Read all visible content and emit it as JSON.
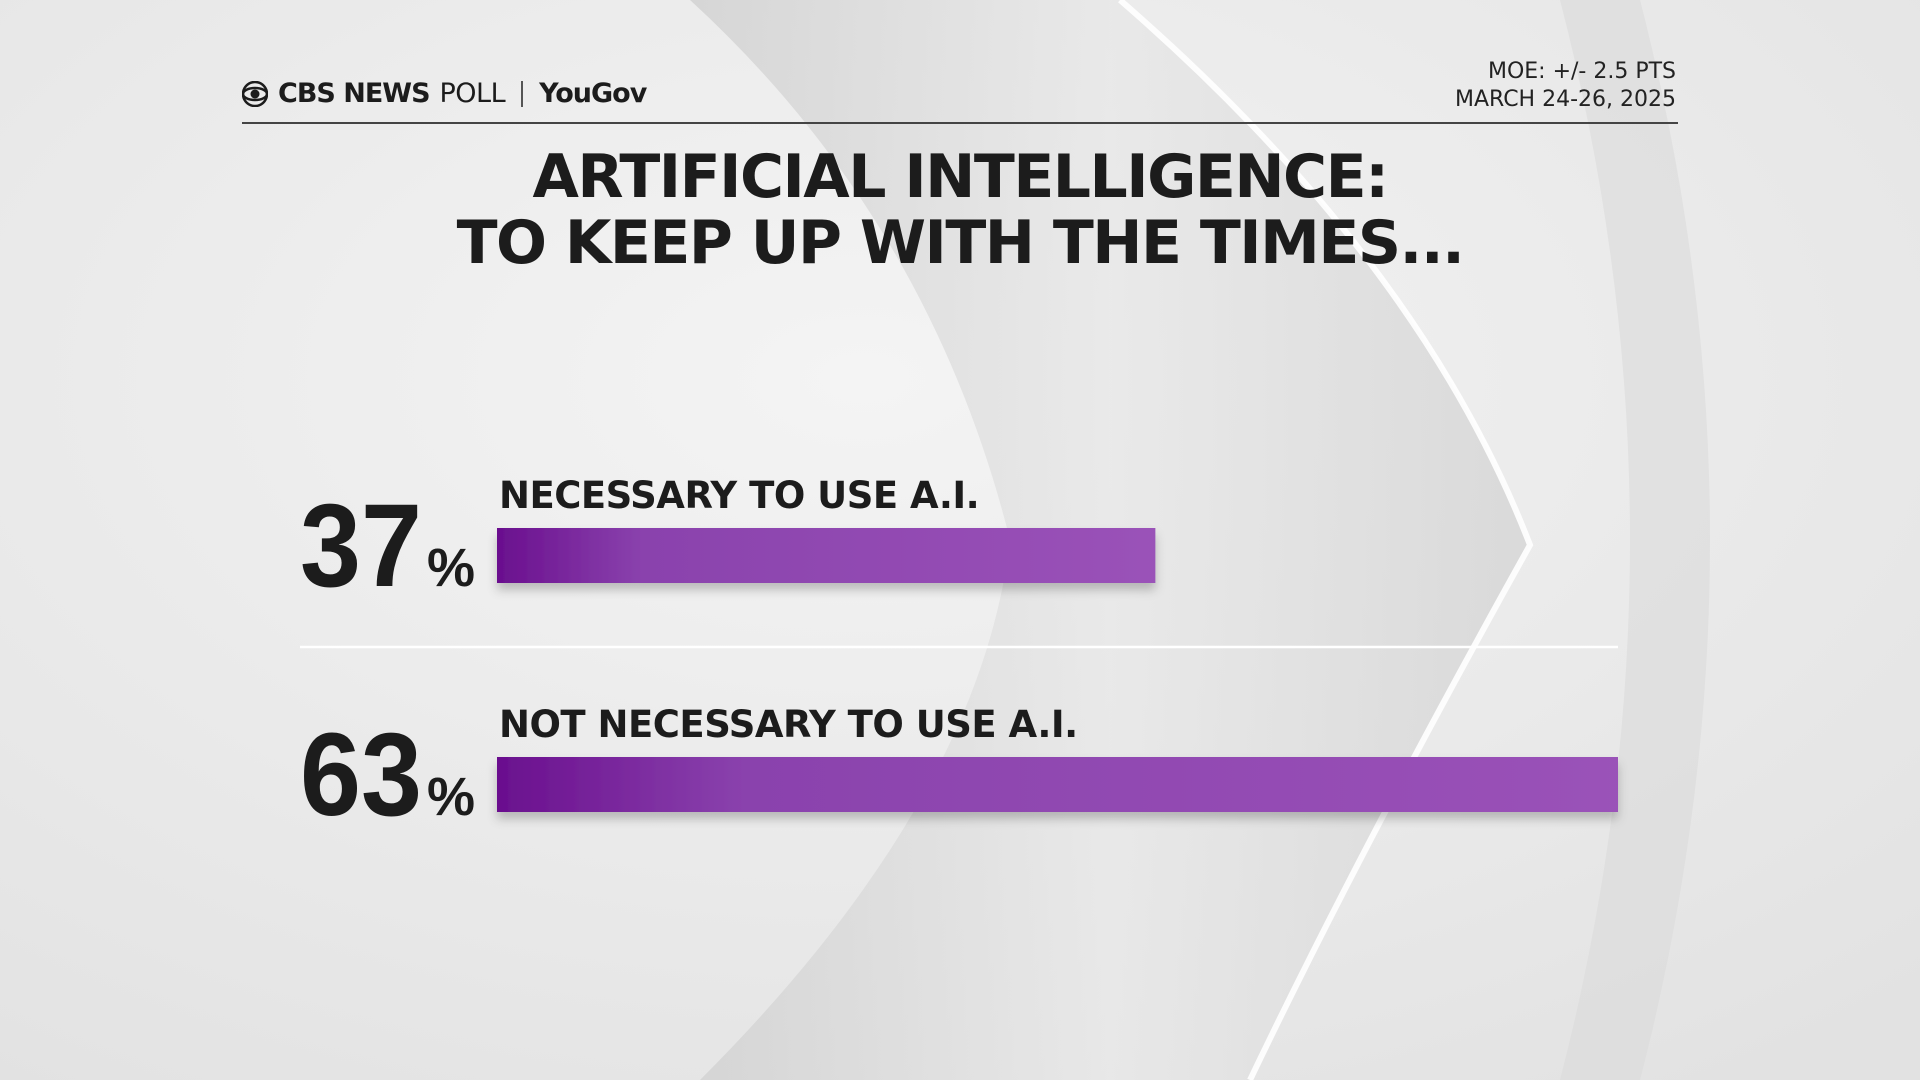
{
  "header": {
    "brand_cbs": "CBS NEWS",
    "brand_poll": "POLL",
    "brand_partner": "YouGov",
    "moe": "MOE: +/- 2.5 PTS",
    "date": "MARCH 24-26, 2025"
  },
  "title_line1": "ARTIFICIAL INTELLIGENCE:",
  "title_line2": "TO KEEP UP WITH THE TIMES...",
  "colors": {
    "bar_start": "#6a0f8e",
    "bar_end": "#9a52b8",
    "text": "#1c1c1c"
  },
  "chart_data": {
    "type": "bar",
    "orientation": "horizontal",
    "categories": [
      "NECESSARY TO USE A.I.",
      "NOT NECESSARY TO USE A.I."
    ],
    "values": [
      37,
      63
    ],
    "value_labels": [
      "37",
      "63"
    ],
    "unit": "%",
    "xlim": [
      0,
      63
    ],
    "grid": false,
    "legend": "none"
  }
}
